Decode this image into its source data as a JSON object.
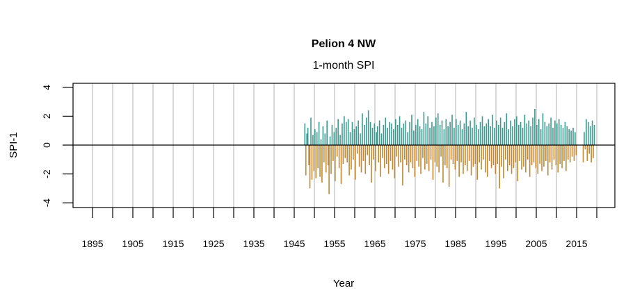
{
  "chart_data": {
    "type": "bar",
    "title": "Pelion 4 NW",
    "subtitle": "1-month SPI",
    "xlabel": "Year",
    "ylabel": "SPI-1",
    "xlim": [
      1890,
      2024
    ],
    "ylim": [
      -4.3,
      4.3
    ],
    "yticks": [
      4,
      2,
      0,
      -2,
      -4
    ],
    "xticks": [
      1895,
      1900,
      1905,
      1910,
      1915,
      1920,
      1925,
      1930,
      1935,
      1940,
      1945,
      1950,
      1955,
      1960,
      1965,
      1970,
      1975,
      1980,
      1985,
      1990,
      1995,
      2000,
      2005,
      2010,
      2015,
      2020
    ],
    "xtick_labels": [
      "1895",
      "1905",
      "1915",
      "1925",
      "1935",
      "1945",
      "1955",
      "1965",
      "1975",
      "1985",
      "1995",
      "2005",
      "2015"
    ],
    "grid": "vertical lines at every 5 years",
    "colors": {
      "positive": "#3a9a8f",
      "negative": "#c4862e",
      "grid": "#bebebe"
    },
    "series_start": 1947.5,
    "series_step_years": 0.25,
    "values": [
      1.5,
      -2.1,
      0.8,
      1.2,
      -1.4,
      -3.0,
      1.9,
      -2.4,
      0.7,
      -1.8,
      1.1,
      -2.3,
      0.9,
      -1.6,
      1.6,
      -2.2,
      0.4,
      -2.6,
      1.3,
      -1.2,
      0.8,
      -1.9,
      1.7,
      -1.4,
      -3.4,
      0.6,
      -2.0,
      1.4,
      -1.1,
      0.9,
      -2.5,
      1.2,
      -0.8,
      1.8,
      -1.6,
      0.7,
      -2.7,
      1.5,
      -1.3,
      2.0,
      -0.9,
      1.6,
      -1.2,
      1.8,
      -2.1,
      0.9,
      -1.7,
      1.6,
      -1.0,
      1.1,
      -2.4,
      1.3,
      -0.6,
      1.7,
      -1.5,
      0.8,
      -1.9,
      2.2,
      -1.1,
      1.4,
      -2.0,
      1.9,
      -0.7,
      2.4,
      -1.4,
      1.6,
      -2.6,
      1.2,
      -1.0,
      1.5,
      -1.8,
      0.9,
      1.3,
      -1.2,
      1.7,
      -2.2,
      0.8,
      -0.9,
      1.4,
      -1.6,
      1.9,
      -1.3,
      1.2,
      -2.0,
      1.6,
      -1.1,
      1.5,
      -1.7,
      1.1,
      -2.3,
      1.8,
      -0.8,
      1.4,
      -1.5,
      2.0,
      -1.2,
      1.2,
      -2.8,
      1.5,
      -1.0,
      1.7,
      -1.4,
      0.9,
      -1.9,
      1.6,
      -1.2,
      2.1,
      -1.6,
      1.0,
      -2.2,
      1.4,
      -1.1,
      1.8,
      -1.5,
      1.3,
      -2.0,
      1.1,
      -0.9,
      2.3,
      -1.7,
      1.5,
      -1.3,
      2.0,
      -1.8,
      1.2,
      -1.0,
      1.6,
      -2.4,
      1.3,
      -1.2,
      1.9,
      -1.5,
      2.2,
      -1.9,
      1.4,
      -0.8,
      1.7,
      -2.6,
      1.1,
      -1.4,
      1.8,
      -1.6,
      1.3,
      -2.9,
      1.6,
      -1.0,
      2.1,
      -1.3,
      1.2,
      -1.7,
      1.8,
      -1.1,
      1.4,
      -2.2,
      1.7,
      -1.2,
      1.1,
      -2.0,
      1.5,
      -1.4,
      2.3,
      -1.8,
      1.3,
      -1.1,
      1.7,
      -2.1,
      1.2,
      -1.5,
      1.9,
      -1.3,
      1.4,
      -2.4,
      1.1,
      -1.2,
      1.6,
      -1.7,
      2.0,
      -1.0,
      1.3,
      -1.9,
      1.5,
      -2.2,
      1.8,
      -1.1,
      1.3,
      -1.6,
      2.1,
      -1.4,
      1.2,
      -2.0,
      1.7,
      -1.3,
      1.4,
      -3.0,
      1.9,
      -1.5,
      1.2,
      -2.3,
      1.6,
      -1.0,
      2.2,
      -1.8,
      1.1,
      -1.4,
      1.7,
      -2.0,
      1.3,
      -1.6,
      1.8,
      -1.2,
      2.0,
      -2.5,
      1.4,
      -1.1,
      1.6,
      -1.7,
      1.2,
      -1.5,
      2.1,
      -1.9,
      1.5,
      -1.0,
      1.7,
      -2.2,
      1.3,
      -1.4,
      1.9,
      -1.2,
      2.5,
      -1.6,
      1.4,
      -2.0,
      1.8,
      -1.3,
      1.1,
      -1.8,
      2.2,
      -1.5,
      1.6,
      -1.1,
      1.3,
      -2.1,
      1.5,
      -1.2,
      1.9,
      -1.7,
      1.2,
      -1.0,
      1.7,
      -1.4,
      1.5,
      -1.9,
      1.8,
      -1.3,
      1.4,
      -1.6,
      1.2,
      -1.1,
      1.6,
      -1.8,
      1.3,
      -1.0,
      1.1,
      -1.2,
      1.0,
      -0.8,
      1.2,
      -1.1,
      0.9,
      -0.7,
      null,
      null,
      null,
      null,
      null,
      null,
      -1.2,
      0.9,
      -0.3,
      1.8,
      -1.1,
      1.6,
      -0.6,
      1.3,
      -1.2,
      1.7,
      -0.9,
      1.4
    ]
  }
}
